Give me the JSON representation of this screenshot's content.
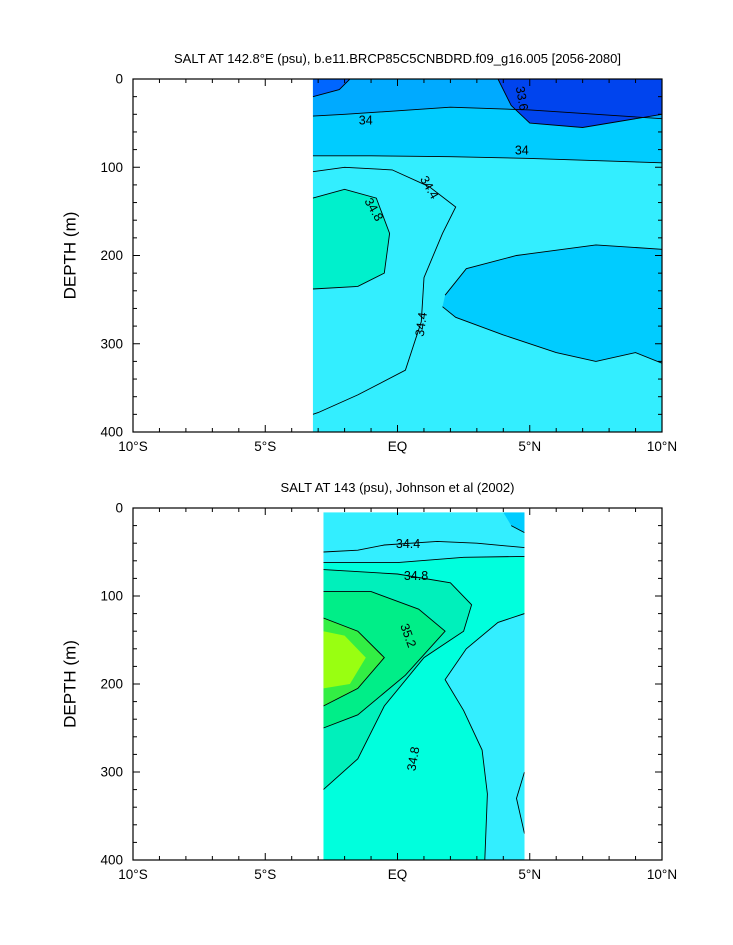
{
  "chart_data": [
    {
      "type": "heatmap",
      "title": "SALT AT 142.8°E (psu), b.e11.BRCP85C5CNBDRD.f09_g16.005 [2056-2080]",
      "xlabel": "",
      "ylabel": "DEPTH (m)",
      "xlim": [
        -10,
        10
      ],
      "ylim": [
        400,
        0
      ],
      "xticks": [
        {
          "value": -10,
          "label": "10°S"
        },
        {
          "value": -5,
          "label": "5°S"
        },
        {
          "value": 0,
          "label": "EQ"
        },
        {
          "value": 5,
          "label": "5°N"
        },
        {
          "value": 10,
          "label": "10°N"
        }
      ],
      "yticks": [
        {
          "value": 0,
          "label": "0"
        },
        {
          "value": 100,
          "label": "100"
        },
        {
          "value": 200,
          "label": "200"
        },
        {
          "value": 300,
          "label": "300"
        },
        {
          "value": 400,
          "label": "400"
        }
      ],
      "data_extent": {
        "x": [
          -3.2,
          10
        ],
        "y": [
          0,
          400
        ]
      },
      "background_color": "#33eeff",
      "regions": [
        {
          "level": 34.4,
          "color": "#33eeff",
          "points": [
            [
              -3.2,
              0
            ],
            [
              10,
              0
            ],
            [
              10,
              400
            ],
            [
              -3.2,
              400
            ]
          ]
        },
        {
          "level": 34.0,
          "color": "#00ccff",
          "points": [
            [
              -3.2,
              0
            ],
            [
              10,
              0
            ],
            [
              10,
              95
            ],
            [
              5,
              90
            ],
            [
              2,
              88
            ],
            [
              -1,
              87
            ],
            [
              -3.2,
              87
            ]
          ]
        },
        {
          "level": 33.6,
          "color": "#00aaff",
          "points": [
            [
              -3.2,
              0
            ],
            [
              10,
              0
            ],
            [
              10,
              45
            ],
            [
              5,
              35
            ],
            [
              2,
              32
            ],
            [
              0,
              36
            ],
            [
              -2,
              40
            ],
            [
              -3.2,
              42
            ]
          ]
        },
        {
          "level": 33.6,
          "color": "#0066ff",
          "points": [
            [
              -3.2,
              0
            ],
            [
              -1.8,
              0
            ],
            [
              -2.2,
              12
            ],
            [
              -3.2,
              20
            ]
          ]
        },
        {
          "level": 33.6,
          "color": "#0044ee",
          "points": [
            [
              3.8,
              0
            ],
            [
              10,
              0
            ],
            [
              10,
              40
            ],
            [
              7,
              55
            ],
            [
              5,
              50
            ],
            [
              4.3,
              30
            ]
          ]
        },
        {
          "level": 34.8,
          "color": "#00f0cc",
          "points": [
            [
              -3.2,
              135
            ],
            [
              -2,
              125
            ],
            [
              -0.8,
              135
            ],
            [
              -0.3,
              175
            ],
            [
              -0.5,
              220
            ],
            [
              -1.5,
              235
            ],
            [
              -3.2,
              238
            ]
          ]
        },
        {
          "level": 34.0,
          "color": "#00ccff",
          "points": [
            [
              1.8,
              245
            ],
            [
              2.6,
              215
            ],
            [
              4.5,
              200
            ],
            [
              7.5,
              188
            ],
            [
              10,
              193
            ],
            [
              10,
              322
            ],
            [
              9,
              310
            ],
            [
              7.5,
              320
            ],
            [
              6,
              310
            ],
            [
              4,
              290
            ],
            [
              2.2,
              270
            ],
            [
              1.7,
              258
            ]
          ]
        }
      ],
      "contours": [
        {
          "label": "33.6",
          "label_at": [
            4.7,
            22
          ],
          "label_angle": 80,
          "points": [
            [
              3.8,
              0
            ],
            [
              4.3,
              30
            ],
            [
              5,
              50
            ],
            [
              7,
              55
            ],
            [
              10,
              40
            ]
          ]
        },
        {
          "label": "34",
          "label_at": [
            -1.2,
            47
          ],
          "label_angle": 0,
          "points": [
            [
              -3.2,
              42
            ],
            [
              -2,
              40
            ],
            [
              0,
              36
            ],
            [
              2,
              32
            ],
            [
              5,
              35
            ],
            [
              10,
              45
            ]
          ]
        },
        {
          "label": "34",
          "label_at": [
            4.7,
            81
          ],
          "label_angle": 0,
          "points": [
            [
              -3.2,
              87
            ],
            [
              -1,
              87
            ],
            [
              2,
              88
            ],
            [
              5,
              90
            ],
            [
              10,
              95
            ]
          ]
        },
        {
          "label": "",
          "points": [
            [
              -3.2,
              20
            ],
            [
              -2.2,
              12
            ],
            [
              -1.8,
              0
            ]
          ]
        },
        {
          "label": "34.4",
          "label_at": [
            1.2,
            123
          ],
          "label_angle": 60,
          "points": [
            [
              -3.2,
              105
            ],
            [
              -2,
              100
            ],
            [
              -0.2,
              103
            ],
            [
              1.2,
              122
            ],
            [
              2.2,
              145
            ],
            [
              1.7,
              175
            ],
            [
              1,
              225
            ],
            [
              0.9,
              275
            ],
            [
              0.3,
              330
            ],
            [
              -1.5,
              358
            ],
            [
              -3,
              378
            ],
            [
              -3.2,
              380
            ]
          ]
        },
        {
          "label": "34.8",
          "label_at": [
            -0.9,
            148
          ],
          "label_angle": 60,
          "points": [
            [
              -3.2,
              135
            ],
            [
              -2,
              125
            ],
            [
              -0.8,
              135
            ],
            [
              -0.3,
              175
            ],
            [
              -0.5,
              220
            ],
            [
              -1.5,
              235
            ],
            [
              -3.2,
              238
            ]
          ]
        },
        {
          "label": "34.4",
          "label_at": [
            0.9,
            278
          ],
          "label_angle": -82,
          "points": []
        },
        {
          "label": "",
          "points": [
            [
              1.8,
              245
            ],
            [
              2.6,
              215
            ],
            [
              4.5,
              200
            ],
            [
              7.5,
              188
            ],
            [
              10,
              193
            ]
          ]
        },
        {
          "label": "",
          "points": [
            [
              1.7,
              258
            ],
            [
              2.2,
              270
            ],
            [
              4,
              290
            ],
            [
              6,
              310
            ],
            [
              7.5,
              320
            ],
            [
              9,
              310
            ],
            [
              10,
              322
            ]
          ]
        }
      ]
    },
    {
      "type": "heatmap",
      "title": "SALT AT 143 (psu), Johnson et al (2002)",
      "xlabel": "",
      "ylabel": "DEPTH (m)",
      "xlim": [
        -10,
        10
      ],
      "ylim": [
        400,
        0
      ],
      "xticks": [
        {
          "value": -10,
          "label": "10°S"
        },
        {
          "value": -5,
          "label": "5°S"
        },
        {
          "value": 0,
          "label": "EQ"
        },
        {
          "value": 5,
          "label": "5°N"
        },
        {
          "value": 10,
          "label": "10°N"
        }
      ],
      "yticks": [
        {
          "value": 0,
          "label": "0"
        },
        {
          "value": 100,
          "label": "100"
        },
        {
          "value": 200,
          "label": "200"
        },
        {
          "value": 300,
          "label": "300"
        },
        {
          "value": 400,
          "label": "400"
        }
      ],
      "data_extent": {
        "x": [
          -2.8,
          4.8
        ],
        "y": [
          5,
          400
        ]
      },
      "background_color": "#00ffdd",
      "regions": [
        {
          "level": 34.8,
          "color": "#00ffdd",
          "points": [
            [
              -2.8,
              5
            ],
            [
              4.8,
              5
            ],
            [
              4.8,
              400
            ],
            [
              -2.8,
              400
            ]
          ]
        },
        {
          "level": 34.4,
          "color": "#33eeff",
          "points": [
            [
              -2.8,
              5
            ],
            [
              4.8,
              5
            ],
            [
              4.8,
              55
            ],
            [
              2.5,
              56
            ],
            [
              0,
              62
            ],
            [
              -2.8,
              62
            ]
          ]
        },
        {
          "level": 34.0,
          "color": "#00ccff",
          "points": [
            [
              4,
              5
            ],
            [
              4.8,
              5
            ],
            [
              4.8,
              28
            ],
            [
              4.3,
              20
            ]
          ]
        },
        {
          "level": 34.4,
          "color": "#33eeff",
          "points": [
            [
              4.8,
              120
            ],
            [
              3.8,
              130
            ],
            [
              2.6,
              160
            ],
            [
              1.8,
              195
            ],
            [
              2.5,
              230
            ],
            [
              3.2,
              275
            ],
            [
              3.4,
              325
            ],
            [
              3.3,
              400
            ],
            [
              4.8,
              400
            ]
          ]
        },
        {
          "level": 34.8,
          "color": "#00f0bb",
          "points": [
            [
              -2.8,
              70
            ],
            [
              0,
              75
            ],
            [
              2,
              85
            ],
            [
              2.8,
              110
            ],
            [
              2.5,
              140
            ],
            [
              1,
              170
            ],
            [
              -0.5,
              225
            ],
            [
              -1.5,
              285
            ],
            [
              -2.8,
              320
            ]
          ]
        },
        {
          "level": 35.2,
          "color": "#00ee88",
          "points": [
            [
              -2.8,
              95
            ],
            [
              -1,
              95
            ],
            [
              0.8,
              115
            ],
            [
              1.8,
              140
            ],
            [
              0.3,
              190
            ],
            [
              -1.5,
              235
            ],
            [
              -2.8,
              250
            ]
          ]
        },
        {
          "level": 35.6,
          "color": "#33ee44",
          "points": [
            [
              -2.8,
              125
            ],
            [
              -1.5,
              140
            ],
            [
              -0.5,
              170
            ],
            [
              -1.5,
              205
            ],
            [
              -2.8,
              225
            ]
          ]
        },
        {
          "level": 36.0,
          "color": "#99ff11",
          "points": [
            [
              -2.8,
              140
            ],
            [
              -2,
              145
            ],
            [
              -1.2,
              170
            ],
            [
              -1.8,
              200
            ],
            [
              -2.8,
              205
            ]
          ]
        }
      ],
      "contours": [
        {
          "label": "34.4",
          "label_at": [
            0.4,
            41
          ],
          "label_angle": 0,
          "points": [
            [
              -2.8,
              50
            ],
            [
              -1.5,
              48
            ],
            [
              -0.5,
              42
            ],
            [
              1.5,
              38
            ],
            [
              3,
              40
            ],
            [
              4.8,
              45
            ]
          ]
        },
        {
          "label": "34.8",
          "label_at": [
            0.7,
            77
          ],
          "label_angle": 0,
          "points": [
            [
              -2.8,
              62
            ],
            [
              0,
              62
            ],
            [
              2.5,
              56
            ],
            [
              4.8,
              55
            ]
          ]
        },
        {
          "label": "",
          "points": [
            [
              4.3,
              20
            ],
            [
              4.8,
              28
            ]
          ]
        },
        {
          "label": "",
          "points": [
            [
              -2.8,
              70
            ],
            [
              0,
              75
            ],
            [
              2,
              85
            ],
            [
              2.8,
              110
            ],
            [
              2.5,
              140
            ],
            [
              1,
              170
            ],
            [
              -0.5,
              225
            ],
            [
              -1.5,
              285
            ],
            [
              -2.8,
              320
            ]
          ]
        },
        {
          "label": "35.2",
          "label_at": [
            0.4,
            145
          ],
          "label_angle": 70,
          "points": [
            [
              -2.8,
              95
            ],
            [
              -1,
              95
            ],
            [
              0.8,
              115
            ],
            [
              1.8,
              140
            ],
            [
              0.3,
              190
            ],
            [
              -1.5,
              235
            ],
            [
              -2.8,
              250
            ]
          ]
        },
        {
          "label": "",
          "points": [
            [
              -2.8,
              125
            ],
            [
              -1.5,
              140
            ],
            [
              -0.5,
              170
            ],
            [
              -1.5,
              205
            ],
            [
              -2.8,
              225
            ]
          ]
        },
        {
          "label": "34.8",
          "label_at": [
            0.6,
            285
          ],
          "label_angle": -80,
          "points": [
            [
              4.8,
              120
            ],
            [
              3.8,
              130
            ],
            [
              2.6,
              160
            ],
            [
              1.8,
              195
            ],
            [
              2.5,
              230
            ],
            [
              3.2,
              275
            ],
            [
              3.4,
              325
            ],
            [
              3.3,
              400
            ]
          ]
        },
        {
          "label": "",
          "points": [
            [
              4.8,
              300
            ],
            [
              4.5,
              330
            ],
            [
              4.8,
              370
            ]
          ]
        }
      ]
    }
  ]
}
